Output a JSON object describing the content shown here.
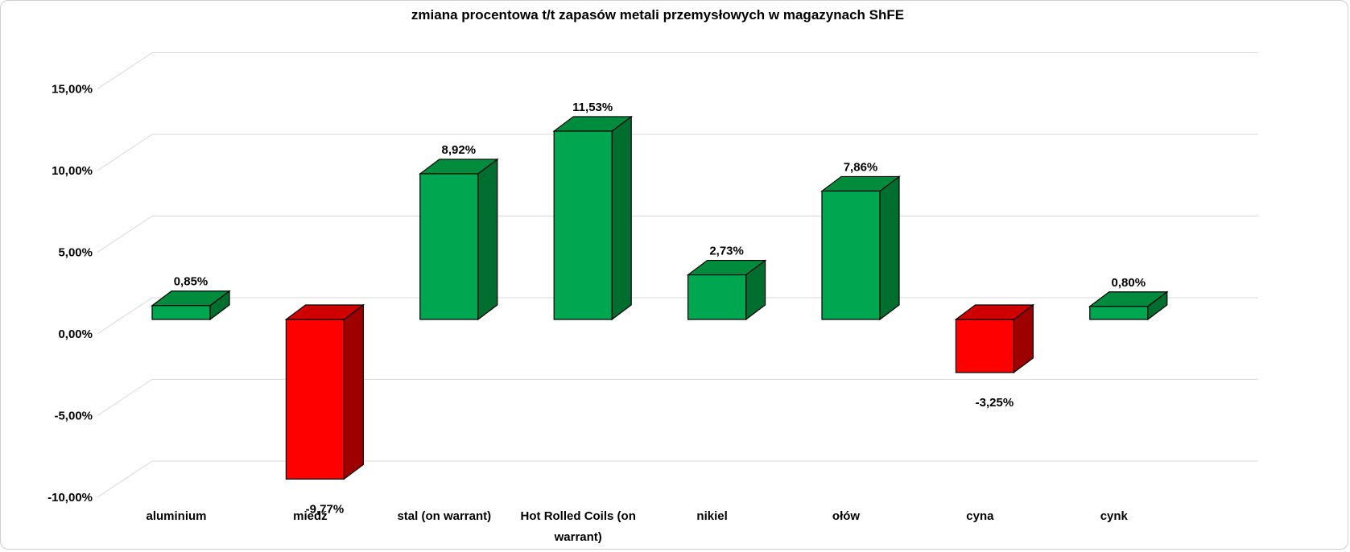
{
  "title": "zmiana procentowa t/t zapasów metali przemysłowych w magazynach ShFE",
  "chart_data": {
    "type": "bar",
    "style": "3d-column",
    "title": "zmiana procentowa t/t zapasów metali przemysłowych w magazynach ShFE",
    "categories": [
      "aluminium",
      "miedź",
      "stal (on warrant)",
      "Hot Rolled Coils (on warrant)",
      "nikiel",
      "ołów",
      "cyna",
      "cynk"
    ],
    "category_lines": [
      [
        "aluminium"
      ],
      [
        "miedź"
      ],
      [
        "stal (on warrant)"
      ],
      [
        "Hot Rolled Coils (on",
        "warrant)"
      ],
      [
        "nikiel"
      ],
      [
        "ołów"
      ],
      [
        "cyna"
      ],
      [
        "cynk"
      ]
    ],
    "values": [
      0.85,
      -9.77,
      8.92,
      11.53,
      2.73,
      7.86,
      -3.25,
      0.8
    ],
    "data_labels": [
      "0,85%",
      "-9,77%",
      "8,92%",
      "11,53%",
      "2,73%",
      "7,86%",
      "-3,25%",
      "0,80%"
    ],
    "y_ticks": [
      "15,00%",
      "10,00%",
      "5,00%",
      "0,00%",
      "-5,00%",
      "-10,00%"
    ],
    "y_tick_values": [
      15,
      10,
      5,
      0,
      -5,
      -10
    ],
    "ylim": [
      -10,
      15
    ],
    "xlabel": "",
    "ylabel": "",
    "grid": true,
    "legend": "none",
    "colors": {
      "positive_front": "#00A650",
      "positive_top": "#008C3C",
      "positive_side": "#006E2E",
      "negative_front": "#FE0000",
      "negative_top": "#CE0000",
      "negative_side": "#9E0000",
      "edge": "#000000",
      "gridline": "#D9D9D9",
      "text": "#000000"
    }
  }
}
